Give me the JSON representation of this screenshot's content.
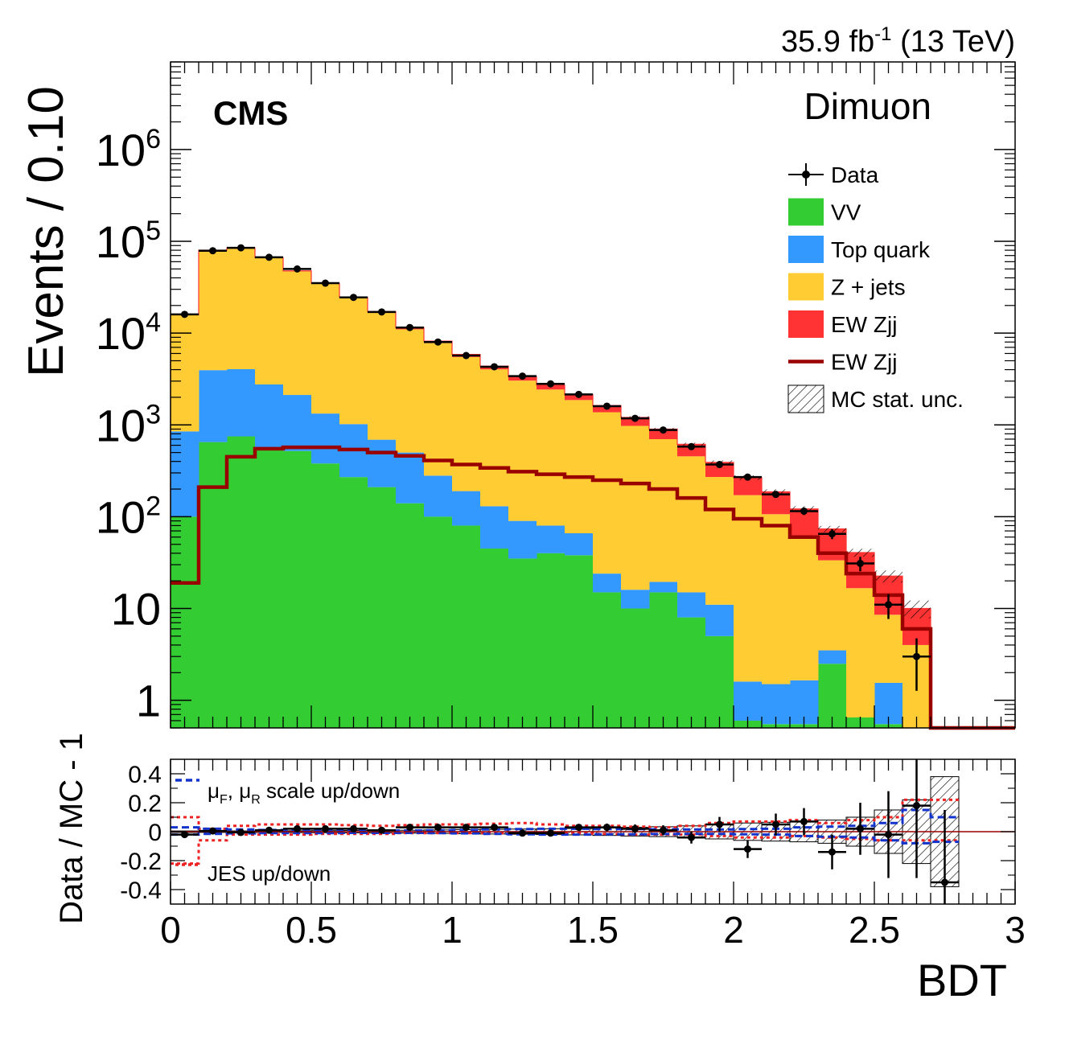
{
  "chart_data": [
    {
      "panel": "main",
      "type": "bar",
      "stacked": true,
      "log_y": true,
      "experiment_label": "CMS",
      "lumi_label": "35.9 fb",
      "lumi_sup": "-1",
      "lumi_energy": " (13 TeV)",
      "channel_label": "Dimuon",
      "ylabel": "Events / 0.10",
      "ylim": [
        0.5,
        9000000
      ],
      "xlim": [
        0,
        3
      ],
      "bin_width": 0.1,
      "x_bin_edges": [
        0,
        0.1,
        0.2,
        0.3,
        0.4,
        0.5,
        0.6,
        0.7,
        0.8,
        0.9,
        1.0,
        1.1,
        1.2,
        1.3,
        1.4,
        1.5,
        1.6,
        1.7,
        1.8,
        1.9,
        2.0,
        2.1,
        2.2,
        2.3,
        2.4,
        2.5,
        2.6,
        2.7,
        2.8,
        2.9,
        3.0
      ],
      "y_ticks": [
        {
          "value": 1,
          "label": "1"
        },
        {
          "value": 10,
          "label": "10"
        },
        {
          "value": 100,
          "label": "10",
          "sup": "2"
        },
        {
          "value": 1000,
          "label": "10",
          "sup": "3"
        },
        {
          "value": 10000,
          "label": "10",
          "sup": "4"
        },
        {
          "value": 100000,
          "label": "10",
          "sup": "5"
        },
        {
          "value": 1000000,
          "label": "10",
          "sup": "6"
        }
      ],
      "series": [
        {
          "name": "VV",
          "color": "#33cc33",
          "values": [
            100,
            650,
            750,
            560,
            520,
            380,
            270,
            210,
            140,
            100,
            80,
            45,
            35,
            40,
            38,
            15,
            10,
            15,
            8,
            5,
            0.6,
            0.55,
            0.55,
            2.5,
            0.65,
            0.55,
            0.5,
            0,
            0,
            0
          ]
        },
        {
          "name": "Top quark",
          "color": "#3399ff",
          "values": [
            750,
            3300,
            3300,
            2200,
            1600,
            950,
            750,
            480,
            360,
            180,
            110,
            85,
            55,
            40,
            28,
            9,
            6,
            4.5,
            7,
            6,
            1,
            0.95,
            1.1,
            1.0,
            0,
            1.0,
            0,
            0,
            0,
            0
          ]
        },
        {
          "name": "Z + jets",
          "color": "#ffcc33",
          "values": [
            15000,
            76000,
            80000,
            63000,
            45000,
            33000,
            23000,
            16000,
            10500,
            7500,
            5300,
            3900,
            2950,
            2350,
            1800,
            1350,
            960,
            680,
            440,
            260,
            170,
            105,
            60,
            30,
            16,
            7,
            3.5,
            0,
            0,
            0
          ]
        },
        {
          "name": "EW Zjj",
          "color": "#ff3333",
          "values": [
            19,
            210,
            450,
            550,
            570,
            570,
            540,
            500,
            460,
            410,
            370,
            340,
            310,
            290,
            270,
            250,
            230,
            200,
            160,
            120,
            95,
            80,
            60,
            40,
            24,
            14,
            6,
            0,
            0,
            0
          ]
        }
      ],
      "ewzjj_line": {
        "name": "EW Zjj",
        "color": "#990000",
        "values": [
          19,
          210,
          450,
          550,
          570,
          570,
          540,
          500,
          460,
          410,
          370,
          340,
          310,
          290,
          270,
          250,
          230,
          200,
          160,
          120,
          95,
          80,
          60,
          40,
          24,
          14,
          6,
          0.5,
          0.5,
          0.5
        ]
      },
      "data": {
        "name": "Data",
        "values": [
          16000,
          79000,
          85000,
          67000,
          50000,
          35000,
          24500,
          17000,
          11500,
          8000,
          5700,
          4300,
          3400,
          2800,
          2150,
          1600,
          1180,
          880,
          580,
          370,
          270,
          175,
          115,
          65,
          31,
          11,
          3.0
        ]
      },
      "legend": {
        "position": "top-right",
        "entries": [
          {
            "label": "Data",
            "kind": "marker"
          },
          {
            "label": "VV",
            "kind": "fill",
            "color": "#33cc33"
          },
          {
            "label": "Top quark",
            "kind": "fill",
            "color": "#3399ff"
          },
          {
            "label": "Z + jets",
            "kind": "fill",
            "color": "#ffcc33"
          },
          {
            "label": "EW Zjj",
            "kind": "fill",
            "color": "#ff3333"
          },
          {
            "label": "EW Zjj",
            "kind": "line",
            "color": "#990000"
          },
          {
            "label": "MC stat. unc.",
            "kind": "hatch"
          }
        ]
      }
    },
    {
      "panel": "ratio",
      "type": "scatter",
      "ylabel": "Data / MC - 1",
      "xlabel": "BDT",
      "ylim": [
        -0.5,
        0.5
      ],
      "xlim": [
        0,
        3
      ],
      "y_ticks": [
        {
          "value": 0.4,
          "label": "0.4"
        },
        {
          "value": 0.2,
          "label": "0.2"
        },
        {
          "value": 0,
          "label": "0"
        },
        {
          "value": -0.2,
          "label": "-0.2"
        },
        {
          "value": -0.4,
          "label": "-0.4"
        }
      ],
      "x_ticks": [
        {
          "value": 0,
          "label": "0"
        },
        {
          "value": 0.5,
          "label": "0.5"
        },
        {
          "value": 1,
          "label": "1"
        },
        {
          "value": 1.5,
          "label": "1.5"
        },
        {
          "value": 2,
          "label": "2"
        },
        {
          "value": 2.5,
          "label": "2.5"
        },
        {
          "value": 3,
          "label": "3"
        }
      ],
      "data": {
        "values": [
          -0.02,
          0.005,
          -0.005,
          0.01,
          0.02,
          0.02,
          0.02,
          0.01,
          0.03,
          0.03,
          0.03,
          0.03,
          -0.01,
          -0.01,
          0.03,
          0.03,
          0.02,
          0.01,
          -0.04,
          0.05,
          -0.12,
          0.05,
          0.07,
          -0.14,
          0.02,
          -0.02,
          0.18,
          -0.35
        ],
        "errors": [
          0.005,
          0.005,
          0.005,
          0.005,
          0.005,
          0.006,
          0.007,
          0.008,
          0.01,
          0.012,
          0.014,
          0.016,
          0.018,
          0.02,
          0.022,
          0.026,
          0.03,
          0.034,
          0.042,
          0.052,
          0.062,
          0.075,
          0.093,
          0.12,
          0.18,
          0.3,
          0.5,
          0.5
        ]
      },
      "mc_stat_unc": [
        0.005,
        0.005,
        0.005,
        0.005,
        0.006,
        0.007,
        0.008,
        0.009,
        0.01,
        0.012,
        0.014,
        0.016,
        0.018,
        0.02,
        0.022,
        0.026,
        0.03,
        0.034,
        0.04,
        0.05,
        0.06,
        0.065,
        0.07,
        0.08,
        0.1,
        0.15,
        0.22,
        0.38,
        0,
        0
      ],
      "scale_up": [
        0.03,
        0.02,
        0.015,
        0.012,
        0.01,
        0.01,
        0.008,
        0.008,
        0.008,
        0.01,
        0.012,
        0.015,
        0.018,
        0.02,
        0.02,
        0.018,
        0.018,
        0.016,
        0.015,
        0.015,
        0.018,
        0.02,
        0.03,
        0.035,
        0.04,
        0.06,
        0.15,
        0.1,
        0,
        0
      ],
      "scale_down": [
        -0.02,
        -0.015,
        -0.012,
        -0.01,
        -0.01,
        -0.01,
        -0.008,
        -0.008,
        -0.008,
        -0.01,
        -0.012,
        -0.015,
        -0.018,
        -0.02,
        -0.02,
        -0.018,
        -0.018,
        -0.016,
        -0.015,
        -0.015,
        -0.018,
        -0.02,
        -0.03,
        -0.035,
        -0.04,
        -0.06,
        -0.08,
        -0.07,
        0,
        0
      ],
      "jes_up": [
        0.1,
        0.02,
        0.04,
        0.05,
        0.05,
        0.05,
        0.045,
        0.04,
        0.045,
        0.05,
        0.05,
        0.055,
        0.06,
        0.05,
        0.04,
        0.04,
        0.035,
        0.03,
        0.04,
        0.06,
        0.07,
        0.07,
        0.08,
        0.06,
        0.08,
        0.1,
        0.22,
        0.22,
        0,
        0
      ],
      "jes_down": [
        -0.22,
        -0.06,
        -0.02,
        -0.02,
        -0.02,
        -0.015,
        -0.015,
        -0.015,
        -0.01,
        -0.01,
        -0.01,
        -0.01,
        -0.01,
        -0.01,
        -0.01,
        -0.015,
        -0.02,
        -0.02,
        -0.02,
        -0.03,
        -0.04,
        -0.04,
        -0.03,
        -0.04,
        -0.05,
        -0.06,
        -0.06,
        -0.06,
        0,
        0
      ],
      "annotations": {
        "scale_label_mu": "μ",
        "scale_sub_F": "F",
        "scale_sep": ", μ",
        "scale_sub_R": "R",
        "scale_rest": " scale up/down",
        "jes_label": "JES up/down"
      }
    }
  ]
}
